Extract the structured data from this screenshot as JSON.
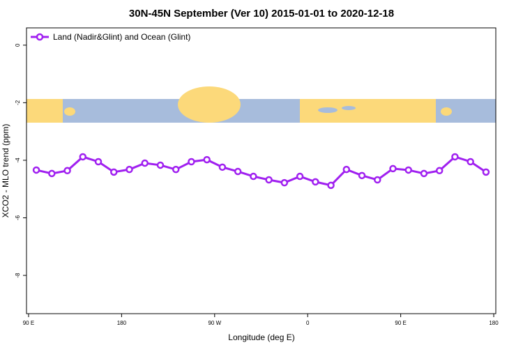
{
  "chart_data": {
    "type": "line",
    "title": "30N-45N September (Ver 10)   2015-01-01 to 2020-12-18",
    "x_label": "Longitude (deg E)",
    "y_label": "XCO2 - MLO trend (ppm)",
    "xlim": [
      88,
      542
    ],
    "ylim": [
      -9.33,
      0.6
    ],
    "xticks": [
      {
        "value": 90,
        "label": "90 E"
      },
      180,
      {
        "value": 270,
        "label": "90 W"
      },
      {
        "value": 360,
        "label": "0"
      },
      {
        "value": 450,
        "label": "90 E"
      },
      {
        "value": 540,
        "label": "180"
      }
    ],
    "yticks": [
      0,
      -2,
      -4,
      -6,
      -8
    ],
    "legend": "top-left",
    "x": [
      97.5,
      112.5,
      127.5,
      142.5,
      157.5,
      172.5,
      187.5,
      202.5,
      217.5,
      232.5,
      247.5,
      262.5,
      277.5,
      292.5,
      307.5,
      322.5,
      337.5,
      352.5,
      367.5,
      382.5,
      397.5,
      412.5,
      427.5,
      442.5,
      457.5,
      472.5,
      487.5,
      502.5,
      517.5,
      532.5
    ],
    "series": [
      {
        "name": "Land (Nadir&Glint) and Ocean (Glint)",
        "color": "#a020f0",
        "values": [
          -4.34,
          -4.46,
          -4.36,
          -3.88,
          -4.05,
          -4.41,
          -4.32,
          -4.1,
          -4.17,
          -4.32,
          -4.05,
          -3.98,
          -4.24,
          -4.39,
          -4.56,
          -4.68,
          -4.78,
          -4.56,
          -4.75,
          -4.87,
          -4.32,
          -4.53,
          -4.68,
          -4.29,
          -4.34,
          -4.46,
          -4.36,
          -3.88,
          -4.05,
          -4.41
        ]
      }
    ]
  }
}
